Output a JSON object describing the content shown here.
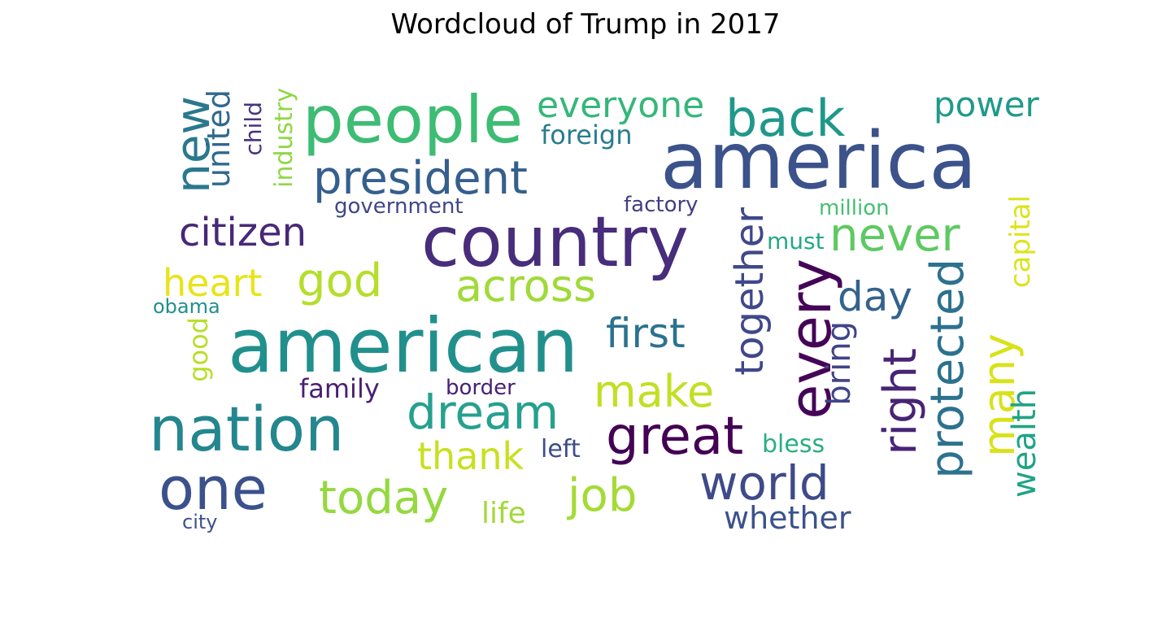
{
  "chart_data": {
    "type": "wordcloud",
    "title": "Wordcloud of Trump in 2017",
    "background": "#ffffff",
    "colormap": "viridis",
    "words": [
      {
        "text": "america",
        "color": "#3b528b",
        "orientation": "horizontal"
      },
      {
        "text": "american",
        "color": "#21908d",
        "orientation": "horizontal"
      },
      {
        "text": "country",
        "color": "#472d7b",
        "orientation": "horizontal"
      },
      {
        "text": "nation",
        "color": "#24868e",
        "orientation": "horizontal"
      },
      {
        "text": "people",
        "color": "#3dbc74",
        "orientation": "horizontal"
      },
      {
        "text": "one",
        "color": "#3b518b",
        "orientation": "horizontal"
      },
      {
        "text": "every",
        "color": "#450457",
        "orientation": "vertical"
      },
      {
        "text": "great",
        "color": "#440154",
        "orientation": "horizontal"
      },
      {
        "text": "protected",
        "color": "#2c728e",
        "orientation": "vertical"
      },
      {
        "text": "dream",
        "color": "#25a18e",
        "orientation": "horizontal"
      },
      {
        "text": "new",
        "color": "#2a788e",
        "orientation": "vertical"
      },
      {
        "text": "president",
        "color": "#355f8d",
        "orientation": "horizontal"
      },
      {
        "text": "back",
        "color": "#1f988b",
        "orientation": "horizontal"
      },
      {
        "text": "world",
        "color": "#3e4a89",
        "orientation": "horizontal"
      },
      {
        "text": "never",
        "color": "#5ec962",
        "orientation": "horizontal"
      },
      {
        "text": "right",
        "color": "#482475",
        "orientation": "vertical"
      },
      {
        "text": "together",
        "color": "#3f4889",
        "orientation": "vertical"
      },
      {
        "text": "across",
        "color": "#a0da39",
        "orientation": "horizontal"
      },
      {
        "text": "citizen",
        "color": "#482878",
        "orientation": "horizontal"
      },
      {
        "text": "job",
        "color": "#a5db36",
        "orientation": "horizontal"
      },
      {
        "text": "god",
        "color": "#b5de2b",
        "orientation": "horizontal"
      },
      {
        "text": "today",
        "color": "#95d840",
        "orientation": "horizontal"
      },
      {
        "text": "make",
        "color": "#c2df23",
        "orientation": "horizontal"
      },
      {
        "text": "first",
        "color": "#2c728e",
        "orientation": "horizontal"
      },
      {
        "text": "many",
        "color": "#d8e219",
        "orientation": "vertical"
      },
      {
        "text": "day",
        "color": "#33638d",
        "orientation": "horizontal"
      },
      {
        "text": "everyone",
        "color": "#35b779",
        "orientation": "horizontal"
      },
      {
        "text": "heart",
        "color": "#e7e419",
        "orientation": "horizontal"
      },
      {
        "text": "power",
        "color": "#1f9a8a",
        "orientation": "horizontal"
      },
      {
        "text": "thank",
        "color": "#c8e020",
        "orientation": "horizontal"
      },
      {
        "text": "bring",
        "color": "#414487",
        "orientation": "vertical"
      },
      {
        "text": "wealth",
        "color": "#20a386",
        "orientation": "vertical"
      },
      {
        "text": "united",
        "color": "#31688e",
        "orientation": "vertical"
      },
      {
        "text": "whether",
        "color": "#3b528b",
        "orientation": "horizontal"
      },
      {
        "text": "capital",
        "color": "#dde318",
        "orientation": "vertical"
      },
      {
        "text": "foreign",
        "color": "#287d8e",
        "orientation": "horizontal"
      },
      {
        "text": "family",
        "color": "#481f70",
        "orientation": "horizontal"
      },
      {
        "text": "industry",
        "color": "#8fd744",
        "orientation": "vertical"
      },
      {
        "text": "good",
        "color": "#b8de29",
        "orientation": "vertical"
      },
      {
        "text": "life",
        "color": "#a2da37",
        "orientation": "horizontal"
      },
      {
        "text": "left",
        "color": "#3e4c8a",
        "orientation": "horizontal"
      },
      {
        "text": "child",
        "color": "#46337e",
        "orientation": "vertical"
      },
      {
        "text": "bless",
        "color": "#29af7f",
        "orientation": "horizontal"
      },
      {
        "text": "must",
        "color": "#22a884",
        "orientation": "horizontal"
      },
      {
        "text": "factory",
        "color": "#433e85",
        "orientation": "horizontal"
      },
      {
        "text": "million",
        "color": "#44bf70",
        "orientation": "horizontal"
      },
      {
        "text": "government",
        "color": "#404688",
        "orientation": "horizontal"
      },
      {
        "text": "border",
        "color": "#482173",
        "orientation": "horizontal"
      },
      {
        "text": "obama",
        "color": "#21908d",
        "orientation": "horizontal"
      },
      {
        "text": "city",
        "color": "#3b528b",
        "orientation": "horizontal"
      }
    ]
  }
}
